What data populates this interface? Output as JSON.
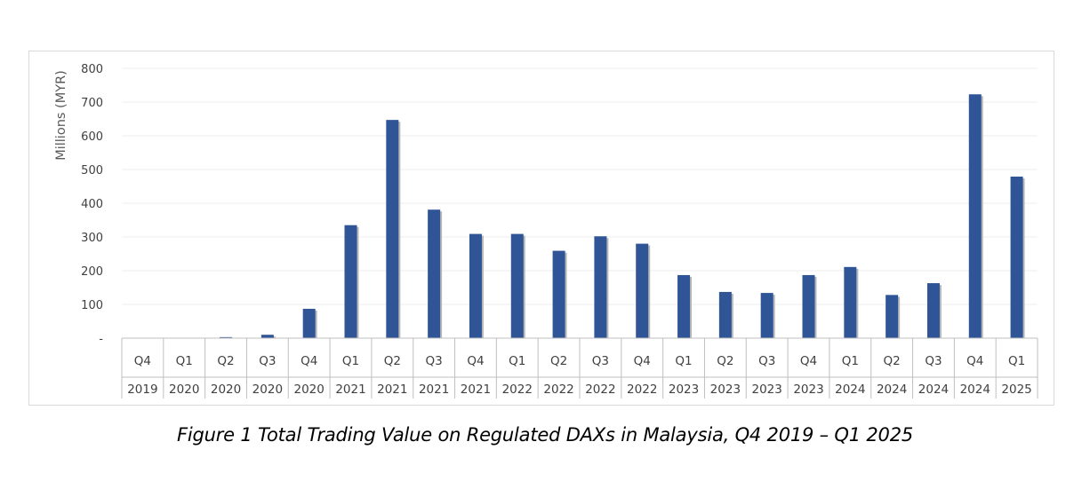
{
  "caption": "Figure 1 Total Trading Value on Regulated DAXs in Malaysia, Q4 2019 – Q1 2025",
  "colors": {
    "bar": "#2F5597",
    "bar_shadow": "#b8b8b8",
    "grid": "#ececec",
    "axis": "#bfbfbf"
  },
  "chart_data": {
    "type": "bar",
    "title": "",
    "ylabel": "Millions (MYR)",
    "xlabel": "",
    "ylim": [
      0,
      800
    ],
    "yticks": [
      "-",
      "100",
      "200",
      "300",
      "400",
      "500",
      "600",
      "700",
      "800"
    ],
    "grid": true,
    "categories": [
      {
        "quarter": "Q4",
        "year": "2019"
      },
      {
        "quarter": "Q1",
        "year": "2020"
      },
      {
        "quarter": "Q2",
        "year": "2020"
      },
      {
        "quarter": "Q3",
        "year": "2020"
      },
      {
        "quarter": "Q4",
        "year": "2020"
      },
      {
        "quarter": "Q1",
        "year": "2021"
      },
      {
        "quarter": "Q2",
        "year": "2021"
      },
      {
        "quarter": "Q3",
        "year": "2021"
      },
      {
        "quarter": "Q4",
        "year": "2021"
      },
      {
        "quarter": "Q1",
        "year": "2022"
      },
      {
        "quarter": "Q2",
        "year": "2022"
      },
      {
        "quarter": "Q3",
        "year": "2022"
      },
      {
        "quarter": "Q4",
        "year": "2022"
      },
      {
        "quarter": "Q1",
        "year": "2023"
      },
      {
        "quarter": "Q2",
        "year": "2023"
      },
      {
        "quarter": "Q3",
        "year": "2023"
      },
      {
        "quarter": "Q4",
        "year": "2023"
      },
      {
        "quarter": "Q1",
        "year": "2024"
      },
      {
        "quarter": "Q2",
        "year": "2024"
      },
      {
        "quarter": "Q3",
        "year": "2024"
      },
      {
        "quarter": "Q4",
        "year": "2024"
      },
      {
        "quarter": "Q1",
        "year": "2025"
      }
    ],
    "values": [
      0,
      0,
      3,
      10,
      87,
      335,
      647,
      381,
      309,
      309,
      259,
      302,
      280,
      187,
      137,
      134,
      187,
      211,
      128,
      163,
      723,
      479
    ]
  }
}
